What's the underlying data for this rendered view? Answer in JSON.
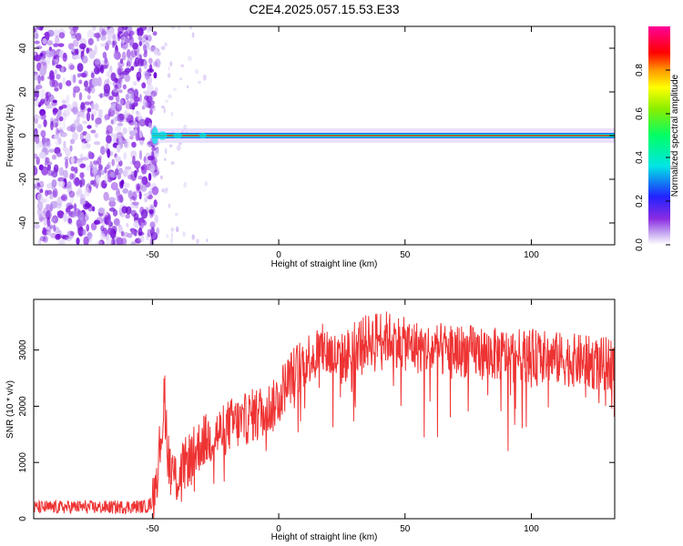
{
  "title": "C2E4.2025.057.15.53.E33",
  "chart_data": [
    {
      "type": "heatmap",
      "xlabel": "Height of straight line (km)",
      "ylabel": "Frequency (Hz)",
      "xlim": [
        -97,
        133
      ],
      "ylim": [
        -50,
        50
      ],
      "xticks": [
        -50,
        0,
        50,
        100
      ],
      "yticks": [
        -40,
        -20,
        0,
        20,
        40
      ],
      "colorbar": {
        "label": "Normalized spectral amplitude",
        "range": [
          0,
          1
        ],
        "ticks": [
          0.0,
          0.2,
          0.4,
          0.6,
          0.8
        ],
        "tick_labels": [
          "0.0",
          "0.2",
          "0.4",
          "0.6",
          "0.8"
        ]
      },
      "features": {
        "noise_region_x": [
          -97,
          -50
        ],
        "signal_line_frequency_hz": 0,
        "signal_line_x": [
          -50,
          133
        ],
        "peak_amplitude": 1.0
      }
    },
    {
      "type": "line",
      "xlabel": "Height of straight line (km)",
      "ylabel": "SNR (10 * v/v)",
      "xlim": [
        -97,
        133
      ],
      "ylim": [
        0,
        3900
      ],
      "xticks": [
        -50,
        0,
        50,
        100
      ],
      "yticks": [
        0,
        1000,
        2000,
        3000
      ],
      "series": [
        {
          "color": "#ee3333",
          "x": [
            -97,
            -90,
            -80,
            -70,
            -60,
            -52,
            -50,
            -48,
            -46,
            -45,
            -44,
            -42,
            -40,
            -38,
            -35,
            -32,
            -30,
            -28,
            -25,
            -22,
            -20,
            -18,
            -15,
            -12,
            -10,
            -8,
            -5,
            -2,
            0,
            3,
            6,
            10,
            14,
            18,
            20,
            24,
            27,
            30,
            35,
            40,
            45,
            50,
            55,
            60,
            70,
            80,
            90,
            100,
            110,
            120,
            126,
            130,
            133
          ],
          "y": [
            200,
            200,
            210,
            200,
            210,
            220,
            300,
            900,
            1700,
            2300,
            1200,
            800,
            700,
            900,
            1100,
            1250,
            1400,
            1400,
            1500,
            1550,
            1650,
            1700,
            1700,
            1800,
            1850,
            1900,
            1950,
            2000,
            2200,
            2400,
            2600,
            2800,
            2950,
            3000,
            2950,
            2800,
            2900,
            3100,
            3150,
            3250,
            3200,
            3100,
            3050,
            3000,
            3000,
            2950,
            2900,
            2900,
            2850,
            2800,
            2750,
            2750,
            2800
          ]
        }
      ]
    }
  ]
}
